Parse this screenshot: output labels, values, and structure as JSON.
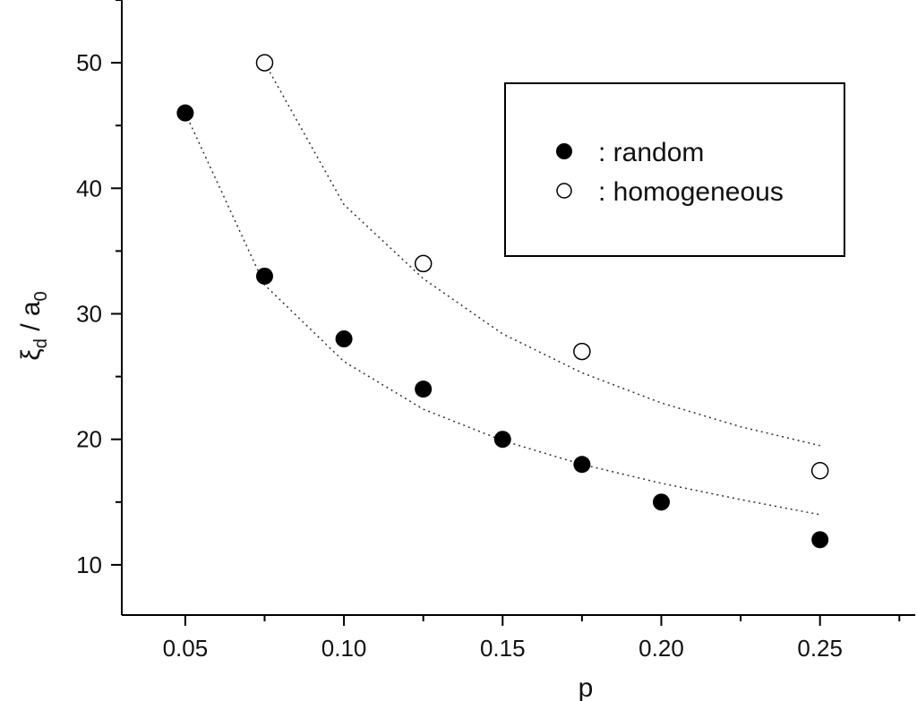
{
  "chart_data": {
    "type": "scatter",
    "title": "",
    "xlabel": "p",
    "ylabel": {
      "base": "ξ",
      "base_sub": "d",
      "sep": " / a",
      "sep_sub": "0"
    },
    "xlim": [
      0.03,
      0.28
    ],
    "ylim": [
      6,
      55
    ],
    "x_ticks": [
      0.05,
      0.1,
      0.15,
      0.2,
      0.25
    ],
    "x_tick_labels": [
      "0.05",
      "0.10",
      "0.15",
      "0.20",
      "0.25"
    ],
    "y_ticks": [
      10,
      20,
      30,
      40,
      50
    ],
    "y_tick_labels": [
      "10",
      "20",
      "30",
      "40",
      "50"
    ],
    "grid": false,
    "legend_position": "top-right",
    "series": [
      {
        "name": ": random",
        "marker": "filled-circle",
        "color": "#000000",
        "x": [
          0.05,
          0.075,
          0.1,
          0.125,
          0.15,
          0.175,
          0.2,
          0.25
        ],
        "y": [
          46,
          33,
          28,
          24,
          20,
          18,
          15,
          12
        ],
        "fit_line": {
          "style": "dotted",
          "x": [
            0.05,
            0.075,
            0.1,
            0.125,
            0.15,
            0.175,
            0.2,
            0.225,
            0.25
          ],
          "y": [
            46,
            32.3,
            26.2,
            22.4,
            19.9,
            18.0,
            16.5,
            15.2,
            14.0
          ]
        }
      },
      {
        "name": ": homogeneous",
        "marker": "open-circle",
        "color": "#000000",
        "x": [
          0.075,
          0.125,
          0.175,
          0.25
        ],
        "y": [
          50,
          34,
          27,
          17.5
        ],
        "fit_line": {
          "style": "dotted",
          "x": [
            0.075,
            0.1,
            0.125,
            0.15,
            0.175,
            0.2,
            0.225,
            0.25
          ],
          "y": [
            50,
            38.7,
            32.8,
            28.4,
            25.3,
            22.9,
            21.0,
            19.5
          ]
        }
      }
    ]
  }
}
